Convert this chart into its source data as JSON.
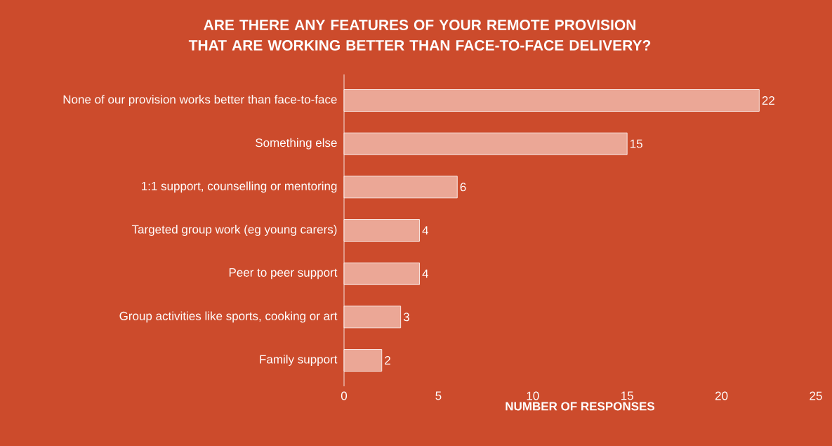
{
  "chart_data": {
    "type": "bar",
    "orientation": "horizontal",
    "title": "ARE THERE ANY FEATURES OF YOUR REMOTE PROVISION THAT ARE WORKING BETTER THAN FACE-TO-FACE DELIVERY?",
    "xlabel": "NUMBER OF RESPONSES",
    "categories": [
      "None of our provision works better than face-to-face",
      "Something else",
      "1:1 support, counselling or mentoring",
      "Targeted group work (eg young carers)",
      "Peer to peer support",
      "Group activities like sports, cooking or art",
      "Family support"
    ],
    "values": [
      22,
      15,
      6,
      4,
      4,
      3,
      2
    ],
    "color": "#eba796",
    "xlim": [
      0,
      25
    ],
    "xticks": [
      0,
      5,
      10,
      15,
      20,
      25
    ],
    "data_labels": true,
    "grid": false
  }
}
